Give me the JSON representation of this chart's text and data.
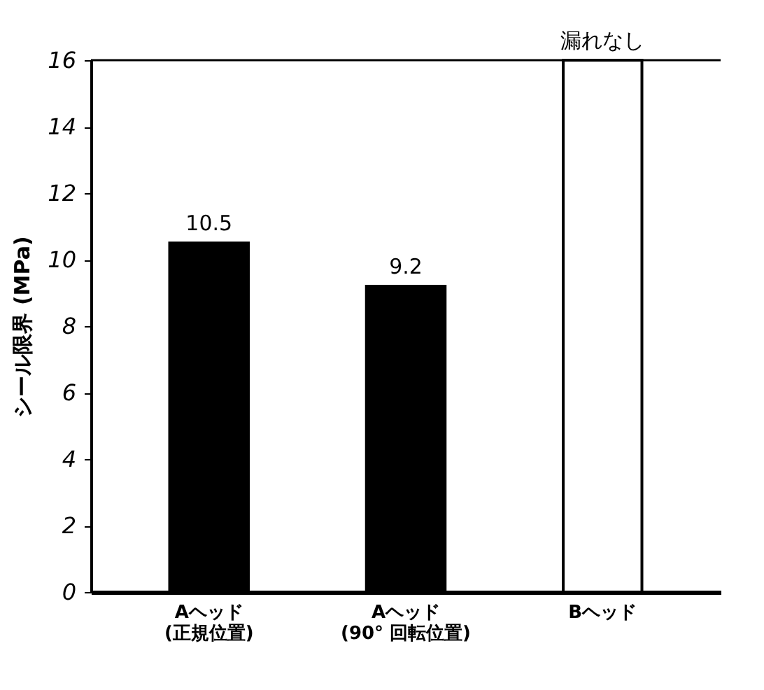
{
  "chart_data": {
    "type": "bar",
    "ylabel": "シール限界 (MPa)",
    "categories": [
      "Aヘッド\n(正規位置)",
      "Aヘッド\n(90° 回転位置)",
      "Bヘッド"
    ],
    "values": [
      10.5,
      9.2,
      16
    ],
    "colors": [
      "#000000",
      "#000000",
      "#ffffff"
    ],
    "value_labels": [
      "10.5",
      "9.2",
      "漏れなし"
    ],
    "ylim": [
      0,
      16
    ],
    "yticks": [
      0,
      2,
      4,
      6,
      8,
      10,
      12,
      14,
      16
    ],
    "ref_lines": [
      {
        "axis": "y",
        "value": 16,
        "color": "#000000"
      }
    ],
    "grid": false
  }
}
